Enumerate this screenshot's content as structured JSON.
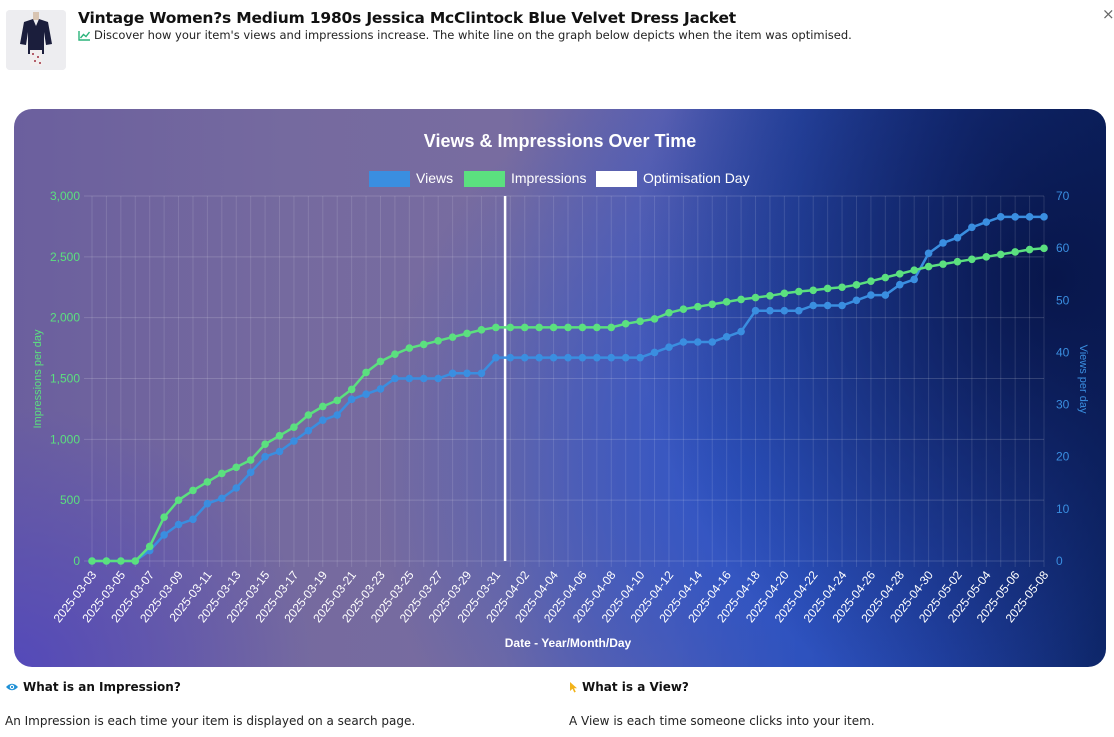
{
  "header": {
    "title": "Vintage Women?s Medium 1980s Jessica McClintock Blue Velvet Dress Jacket",
    "subtitle": "Discover how your item's views and impressions increase. The white line on the graph below depicts when the item was optimised.",
    "close_label": "×"
  },
  "colors": {
    "views": "#3a8ee0",
    "impressions": "#5be07f",
    "optimisation": "#ffffff",
    "accent": "#2bb37a"
  },
  "info": {
    "impression_heading": "What is an Impression?",
    "impression_text": "An Impression is each time your item is displayed on a search page.",
    "view_heading": "What is a View?",
    "view_text": "A View is each time someone clicks into your item."
  },
  "chart_data": {
    "type": "line",
    "title": "Views & Impressions Over Time",
    "xlabel": "Date - Year/Month/Day",
    "ylabel_left": "Impressions per day",
    "ylabel_right": "Views per day",
    "ylim_left": [
      0,
      3000
    ],
    "ylim_right": [
      0,
      70
    ],
    "yticks_left": [
      "0",
      "500",
      "1,000",
      "1,500",
      "2,000",
      "2,500",
      "3,000"
    ],
    "yticks_right": [
      "0",
      "10",
      "20",
      "30",
      "40",
      "50",
      "60",
      "70"
    ],
    "grid": true,
    "legend_position": "top",
    "legend": [
      "Views",
      "Impressions",
      "Optimisation Day"
    ],
    "optimisation_day": "2025-04-01",
    "x": [
      "2025-03-03",
      "2025-03-04",
      "2025-03-05",
      "2025-03-06",
      "2025-03-07",
      "2025-03-08",
      "2025-03-09",
      "2025-03-10",
      "2025-03-11",
      "2025-03-12",
      "2025-03-13",
      "2025-03-14",
      "2025-03-15",
      "2025-03-16",
      "2025-03-17",
      "2025-03-18",
      "2025-03-19",
      "2025-03-20",
      "2025-03-21",
      "2025-03-22",
      "2025-03-23",
      "2025-03-24",
      "2025-03-25",
      "2025-03-26",
      "2025-03-27",
      "2025-03-28",
      "2025-03-29",
      "2025-03-30",
      "2025-03-31",
      "2025-04-01",
      "2025-04-02",
      "2025-04-03",
      "2025-04-04",
      "2025-04-05",
      "2025-04-06",
      "2025-04-07",
      "2025-04-08",
      "2025-04-09",
      "2025-04-10",
      "2025-04-11",
      "2025-04-12",
      "2025-04-13",
      "2025-04-14",
      "2025-04-15",
      "2025-04-16",
      "2025-04-17",
      "2025-04-18",
      "2025-04-19",
      "2025-04-20",
      "2025-04-21",
      "2025-04-22",
      "2025-04-23",
      "2025-04-24",
      "2025-04-25",
      "2025-04-26",
      "2025-04-27",
      "2025-04-28",
      "2025-04-29",
      "2025-04-30",
      "2025-05-01",
      "2025-05-02",
      "2025-05-03",
      "2025-05-04",
      "2025-05-05",
      "2025-05-06",
      "2025-05-07",
      "2025-05-08"
    ],
    "xticks": [
      "2025-03-03",
      "2025-03-05",
      "2025-03-07",
      "2025-03-09",
      "2025-03-11",
      "2025-03-13",
      "2025-03-15",
      "2025-03-17",
      "2025-03-19",
      "2025-03-21",
      "2025-03-23",
      "2025-03-25",
      "2025-03-27",
      "2025-03-29",
      "2025-03-31",
      "2025-04-02",
      "2025-04-04",
      "2025-04-06",
      "2025-04-08",
      "2025-04-10",
      "2025-04-12",
      "2025-04-14",
      "2025-04-16",
      "2025-04-18",
      "2025-04-20",
      "2025-04-22",
      "2025-04-24",
      "2025-04-26",
      "2025-04-28",
      "2025-04-30",
      "2025-05-02",
      "2025-05-04",
      "2025-05-06",
      "2025-05-08"
    ],
    "series": [
      {
        "name": "Views",
        "axis": "right",
        "values": [
          0,
          0,
          0,
          0,
          2,
          5,
          7,
          8,
          11,
          12,
          14,
          17,
          20,
          21,
          23,
          25,
          27,
          28,
          31,
          32,
          33,
          35,
          35,
          35,
          35,
          36,
          36,
          36,
          39,
          39,
          39,
          39,
          39,
          39,
          39,
          39,
          39,
          39,
          39,
          40,
          41,
          42,
          42,
          42,
          43,
          44,
          48,
          48,
          48,
          48,
          49,
          49,
          49,
          50,
          51,
          51,
          53,
          54,
          59,
          61,
          62,
          64,
          65,
          66,
          66,
          66,
          66
        ]
      },
      {
        "name": "Impressions",
        "axis": "left",
        "values": [
          0,
          0,
          0,
          0,
          120,
          360,
          500,
          580,
          650,
          720,
          770,
          830,
          960,
          1030,
          1100,
          1200,
          1270,
          1320,
          1410,
          1550,
          1640,
          1700,
          1750,
          1780,
          1810,
          1840,
          1870,
          1900,
          1920,
          1920,
          1920,
          1920,
          1920,
          1920,
          1920,
          1920,
          1920,
          1950,
          1970,
          1990,
          2040,
          2070,
          2090,
          2110,
          2130,
          2150,
          2165,
          2180,
          2200,
          2215,
          2225,
          2240,
          2250,
          2270,
          2300,
          2330,
          2360,
          2390,
          2420,
          2440,
          2460,
          2480,
          2500,
          2520,
          2540,
          2560,
          2570
        ]
      }
    ]
  }
}
